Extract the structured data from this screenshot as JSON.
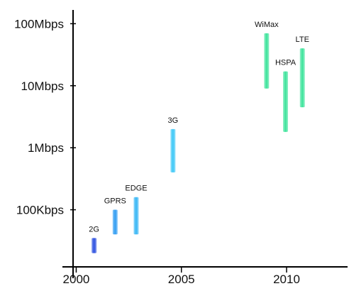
{
  "chart_data": {
    "type": "bar",
    "title": "",
    "xlabel": "",
    "ylabel": "",
    "y_scale": "log",
    "x_ticks": [
      {
        "value": 2000,
        "label": "2000"
      },
      {
        "value": 2005,
        "label": "2005"
      },
      {
        "value": 2010,
        "label": "2010"
      }
    ],
    "y_ticks": [
      {
        "value": 100,
        "label": "100Kbps"
      },
      {
        "value": 1000,
        "label": "1Mbps"
      },
      {
        "value": 10000,
        "label": "10Mbps"
      },
      {
        "value": 100000,
        "label": "100Mbps"
      }
    ],
    "y_unit": "Kbps",
    "xlim": [
      1999.85,
      2012.9
    ],
    "ylim": [
      12,
      150000
    ],
    "ranges": [
      {
        "name": "2G",
        "year": 2000.85,
        "low": 20,
        "high": 35,
        "color": "#2b4fe0"
      },
      {
        "name": "GPRS",
        "year": 2001.85,
        "low": 40,
        "high": 100,
        "color": "#2f9cf2"
      },
      {
        "name": "EDGE",
        "year": 2002.85,
        "low": 40,
        "high": 160,
        "color": "#36b6f5"
      },
      {
        "name": "3G",
        "year": 2004.6,
        "low": 400,
        "high": 2000,
        "color": "#3cc7f7"
      },
      {
        "name": "WiMax",
        "year": 2009.05,
        "low": 9000,
        "high": 70000,
        "color": "#3be39a"
      },
      {
        "name": "HSPA",
        "year": 2009.95,
        "low": 1800,
        "high": 17000,
        "color": "#3be39a"
      },
      {
        "name": "LTE",
        "year": 2010.75,
        "low": 4500,
        "high": 40000,
        "color": "#3be39a"
      }
    ],
    "grid": false,
    "legend": "none"
  }
}
